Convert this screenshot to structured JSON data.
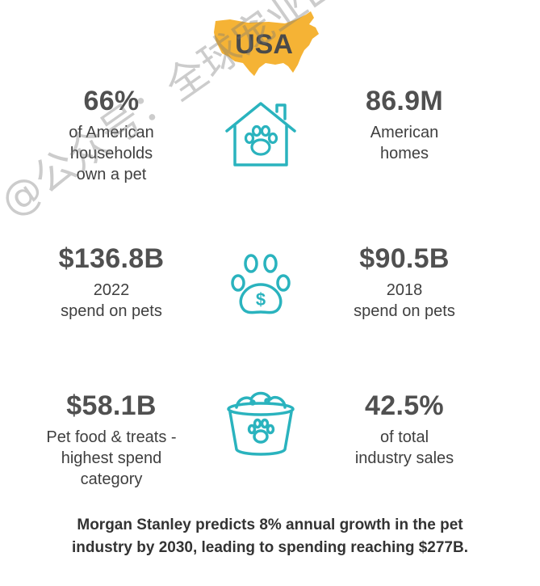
{
  "header": {
    "region_label": "USA",
    "map_color": "#F5B335"
  },
  "stats": [
    {
      "value": "66%",
      "description": "of American\nhouseholds\nown a pet"
    },
    {
      "value": "86.9M",
      "description": "American\nhomes"
    },
    {
      "value": "$136.8B",
      "description": "2022\nspend on pets"
    },
    {
      "value": "$90.5B",
      "description": "2018\nspend on pets"
    },
    {
      "value": "$58.1B",
      "description": "Pet food & treats -\nhighest spend\ncategory"
    },
    {
      "value": "42.5%",
      "description": "of total\nindustry sales"
    }
  ],
  "icons": {
    "house_paw": "house-paw-icon",
    "dollar_paw": "paw-dollar-icon",
    "food_bowl": "pet-food-bowl-icon",
    "dollar_symbol": "$",
    "accent_color": "#2AB3BE"
  },
  "footer": {
    "line1": "Morgan Stanley predicts 8% annual growth in the pet",
    "line2": "industry by 2030, leading to spending reaching $277B."
  },
  "watermark": {
    "text": "@公众号：全球宠业出海洞察"
  }
}
